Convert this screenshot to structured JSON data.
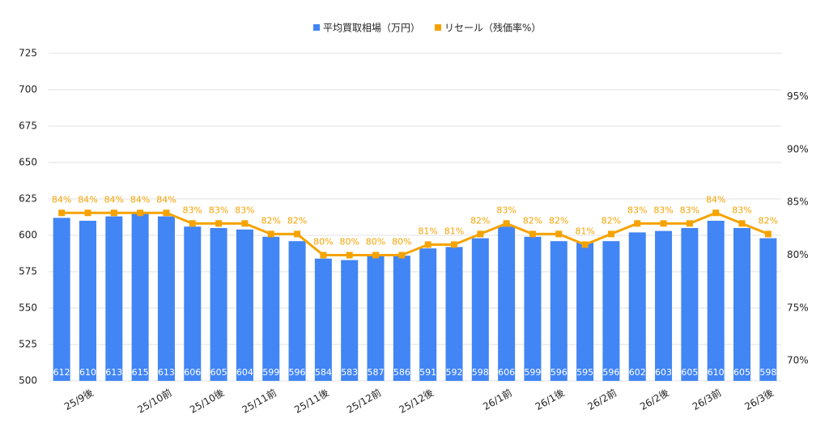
{
  "chart_data": {
    "type": "combo",
    "categories": [
      null,
      "25/9後",
      null,
      null,
      "25/10前",
      null,
      "25/10後",
      null,
      "25/11前",
      null,
      "25/11後",
      null,
      "25/12前",
      null,
      "25/12後",
      null,
      null,
      "26/1前",
      null,
      "26/1後",
      null,
      "26/2前",
      null,
      "26/2後",
      null,
      "26/3前",
      null,
      "26/3後"
    ],
    "series": [
      {
        "name": "平均買取相場（万円）",
        "type": "bar",
        "color": "#4285f4",
        "values": [
          612,
          610,
          613,
          615,
          613,
          606,
          605,
          604,
          599,
          596,
          584,
          583,
          587,
          586,
          591,
          592,
          598,
          606,
          599,
          596,
          595,
          596,
          602,
          603,
          605,
          610,
          605,
          598
        ]
      },
      {
        "name": "リセール（残価率%）",
        "type": "line",
        "axis": "y2",
        "color": "#f5a300",
        "values": [
          84,
          84,
          84,
          84,
          84,
          83,
          83,
          83,
          82,
          82,
          80,
          80,
          80,
          80,
          81,
          81,
          82,
          83,
          82,
          82,
          81,
          82,
          83,
          83,
          83,
          84,
          83,
          82
        ],
        "value_labels": [
          "84%",
          "84%",
          "84%",
          "84%",
          "84%",
          "83%",
          "83%",
          "83%",
          "82%",
          "82%",
          "80%",
          "80%",
          "80%",
          "80%",
          "81%",
          "81%",
          "82%",
          "83%",
          "82%",
          "82%",
          "81%",
          "82%",
          "83%",
          "83%",
          "83%",
          "84%",
          "83%",
          "82%"
        ]
      }
    ],
    "ylim": [
      500,
      725
    ],
    "yticks": [
      500,
      525,
      550,
      575,
      600,
      625,
      650,
      675,
      700,
      725
    ],
    "y2lim": [
      68.1,
      99.1
    ],
    "y2ticks": [
      {
        "value": 70,
        "label": "70%"
      },
      {
        "value": 75,
        "label": "75%"
      },
      {
        "value": 80,
        "label": "80%"
      },
      {
        "value": 85,
        "label": "85%"
      },
      {
        "value": 90,
        "label": "90%"
      },
      {
        "value": 95,
        "label": "95%"
      }
    ],
    "grid": true,
    "legend": "top"
  }
}
